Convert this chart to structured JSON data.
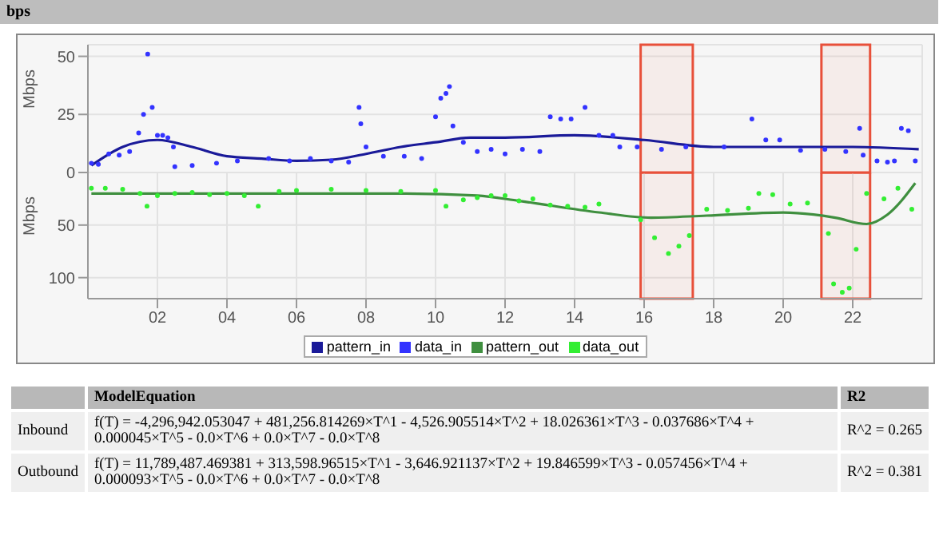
{
  "chart_data": [
    {
      "type": "scatter",
      "title": "bps",
      "ylabel": "Mbps",
      "xlim": [
        0,
        24
      ],
      "ylim": [
        0,
        55
      ],
      "yticks": [
        0,
        25,
        50
      ],
      "grid": true,
      "tick_labels": "y",
      "legend": "bottom",
      "bands": [
        {
          "axis": "x",
          "from": 15.9,
          "to": 17.4,
          "color": "#e8503a"
        },
        {
          "axis": "x",
          "from": 21.1,
          "to": 22.5,
          "color": "#e8503a"
        }
      ],
      "series": [
        {
          "name": "pattern_in",
          "type": "line",
          "marker": "none",
          "color": "#1a1a99",
          "x": [
            0.1,
            1,
            2,
            3,
            4,
            5,
            6,
            7,
            8,
            9,
            10,
            11,
            12,
            14,
            16,
            18,
            20,
            22,
            23.9
          ],
          "values": [
            3,
            11,
            14,
            11,
            7,
            6,
            5,
            5.5,
            8,
            11,
            13,
            15,
            15,
            16,
            14,
            11,
            11,
            11,
            10
          ]
        },
        {
          "name": "data_in",
          "type": "scatter",
          "marker": "circle",
          "color": "#3333ff",
          "x": [
            0.1,
            0.3,
            0.6,
            0.9,
            1.2,
            1.46,
            1.6,
            1.72,
            1.85,
            2.0,
            2.15,
            2.3,
            2.46,
            2.5,
            3.0,
            3.7,
            4.3,
            5.2,
            5.8,
            6.4,
            7.0,
            7.5,
            7.8,
            7.85,
            8.0,
            8.5,
            9.1,
            9.6,
            10.0,
            10.15,
            10.3,
            10.4,
            10.5,
            10.8,
            11.2,
            11.6,
            12.0,
            12.5,
            13.0,
            13.3,
            13.6,
            13.9,
            14.3,
            14.7,
            15.1,
            15.3,
            15.8,
            16.5,
            17.2,
            18.3,
            19.1,
            19.5,
            19.9,
            20.5,
            21.2,
            21.8,
            22.2,
            22.3,
            22.7,
            23.0,
            23.2,
            23.4,
            23.6,
            23.8
          ],
          "values": [
            4,
            3.5,
            8,
            7.5,
            9,
            17,
            25,
            51,
            28,
            16,
            16,
            15,
            11,
            2.5,
            3,
            4,
            5,
            6,
            5,
            6,
            5,
            4.5,
            28,
            21,
            11,
            7,
            7,
            6,
            24,
            32,
            34,
            37,
            20,
            13,
            9,
            10,
            8,
            10,
            9,
            24,
            23,
            23,
            28,
            16,
            16,
            11,
            11,
            10,
            11,
            11,
            23,
            14,
            14,
            9.5,
            10,
            9,
            19,
            7.5,
            5,
            4.5,
            5,
            19,
            18,
            5
          ]
        }
      ]
    },
    {
      "type": "scatter",
      "ylabel": "Mbps",
      "xlim": [
        0,
        24
      ],
      "xticks": [
        {
          "value": 2,
          "label": "02"
        },
        {
          "value": 4,
          "label": "04"
        },
        {
          "value": 6,
          "label": "06"
        },
        {
          "value": 8,
          "label": "08"
        },
        {
          "value": 10,
          "label": "10"
        },
        {
          "value": 12,
          "label": "12"
        },
        {
          "value": 14,
          "label": "14"
        },
        {
          "value": 16,
          "label": "16"
        },
        {
          "value": 18,
          "label": "18"
        },
        {
          "value": 20,
          "label": "20"
        },
        {
          "value": 22,
          "label": "22"
        }
      ],
      "ylim": [
        120,
        0
      ],
      "yticks": [
        50,
        100
      ],
      "grid": true,
      "legend": "bottom",
      "bands": [
        {
          "axis": "x",
          "from": 15.9,
          "to": 17.4,
          "color": "#e8503a"
        },
        {
          "axis": "x",
          "from": 21.1,
          "to": 22.5,
          "color": "#e8503a"
        }
      ],
      "annotations": [
        "ModelEquation",
        "R2",
        "Inbound",
        "f(T) = -4,296,942.053047 + 481,256.814269×T^1 - 4,526.905514×T^2 + 18.026361×T^3 - 0.037686×T^4 + 0.000045×T^5 - 0.0×T^6 + 0.0×T^7 - 0.0×T^8",
        "R^2 = 0.265",
        "Outbound",
        "f(T) = 11,789,487.469381 + 313,598.96515×T^1 - 3,646.921137×T^2 + 19.846599×T^3 - 0.057456×T^4 + 0.000093×T^5 - 0.0×T^6 + 0.0×T^7 - 0.0×T^8",
        "R^2 = 0.381"
      ],
      "series": [
        {
          "name": "pattern_out",
          "type": "line",
          "marker": "none",
          "color": "#3f8f3f",
          "x": [
            0.1,
            2,
            4,
            6,
            8,
            9,
            11.2,
            12.4,
            14.7,
            16.2,
            17.8,
            20,
            21.5,
            22.4,
            23,
            23.8
          ],
          "values": [
            20,
            20,
            20,
            20,
            20,
            20,
            22,
            27,
            38,
            43,
            41,
            38,
            43,
            49,
            40,
            10
          ]
        },
        {
          "name": "data_out",
          "type": "scatter",
          "marker": "circle",
          "color": "#33ee33",
          "x": [
            0.1,
            0.5,
            1.0,
            1.5,
            1.7,
            2.0,
            2.5,
            3.0,
            3.5,
            4.0,
            4.5,
            4.9,
            5.5,
            6.0,
            7.0,
            8.0,
            9.0,
            10.0,
            10.3,
            10.8,
            11.2,
            11.6,
            12.0,
            12.4,
            12.8,
            13.3,
            13.8,
            14.3,
            14.7,
            15.9,
            16.3,
            16.7,
            17.0,
            17.3,
            17.8,
            18.4,
            19.0,
            19.3,
            19.7,
            20.2,
            20.7,
            21.3,
            21.45,
            21.7,
            21.9,
            22.1,
            22.4,
            22.9,
            23.3,
            23.7
          ],
          "values": [
            15,
            15,
            16,
            20,
            32,
            22,
            20,
            19,
            21,
            20,
            22,
            32,
            18,
            17,
            16,
            17,
            18,
            17,
            32,
            26,
            24,
            22,
            22,
            27,
            25,
            31,
            32,
            33,
            30,
            45,
            62,
            77,
            70,
            60,
            35,
            36,
            34,
            20,
            21,
            30,
            29,
            58,
            106,
            114,
            110,
            73,
            20,
            25,
            15,
            35
          ]
        }
      ]
    }
  ]
}
